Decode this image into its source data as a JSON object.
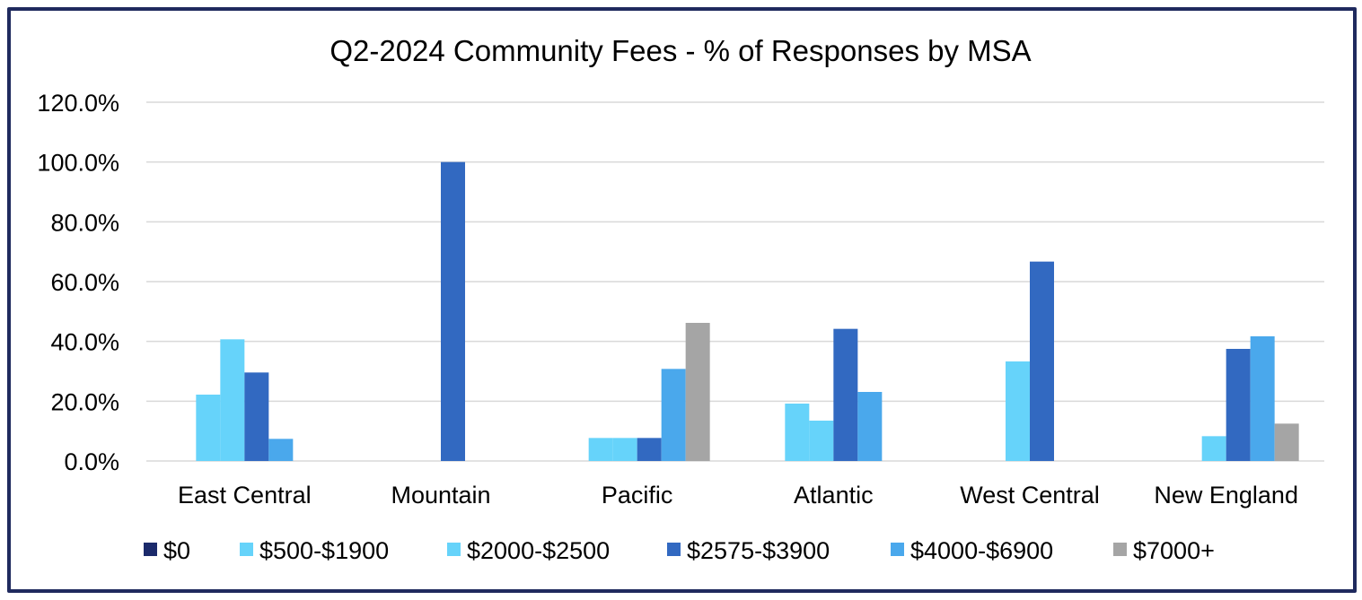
{
  "chart_data": {
    "type": "bar",
    "title": "Q2-2024 Community Fees - % of Responses by MSA",
    "xlabel": "",
    "ylabel": "",
    "ylim": [
      0,
      120
    ],
    "yticks": [
      "0.0%",
      "20.0%",
      "40.0%",
      "60.0%",
      "80.0%",
      "100.0%",
      "120.0%"
    ],
    "categories": [
      "East Central",
      "Mountain",
      "Pacific",
      "Atlantic",
      "West Central",
      "New England"
    ],
    "legend_position": "bottom",
    "grid": true,
    "series": [
      {
        "name": "$0",
        "color": "#1b2a6b",
        "values": [
          0,
          0,
          0,
          0,
          0,
          0
        ]
      },
      {
        "name": "$500-$1900",
        "color": "#66d3fa",
        "values": [
          22.2,
          0,
          7.7,
          19.2,
          0,
          0
        ]
      },
      {
        "name": "$2000-$2500",
        "color": "#66d3fa",
        "values": [
          40.7,
          0,
          7.7,
          13.5,
          33.3,
          8.3
        ]
      },
      {
        "name": "$2575-$3900",
        "color": "#3269c1",
        "values": [
          29.6,
          100,
          7.7,
          44.2,
          66.7,
          37.5
        ]
      },
      {
        "name": "$4000-$6900",
        "color": "#4aa8ec",
        "values": [
          7.4,
          0,
          30.8,
          23.1,
          0,
          41.7
        ]
      },
      {
        "name": "$7000+",
        "color": "#a5a5a5",
        "values": [
          0,
          0,
          46.2,
          0,
          0,
          12.5
        ]
      }
    ]
  }
}
